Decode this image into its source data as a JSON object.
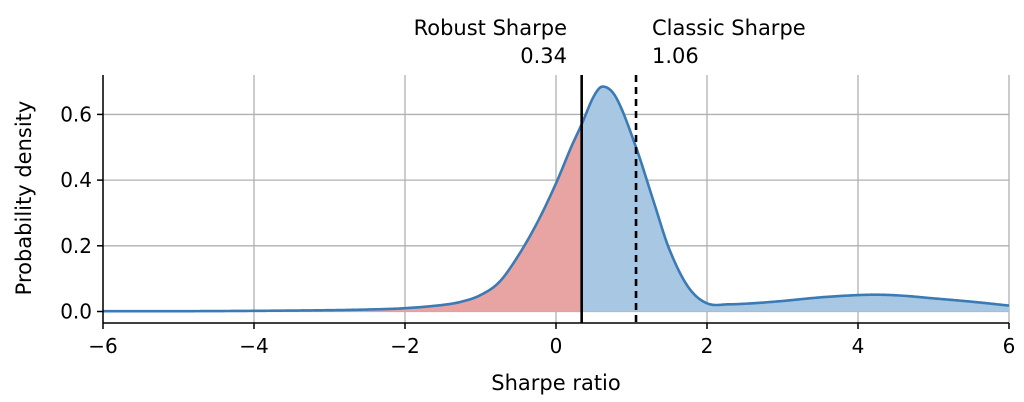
{
  "chart_data": {
    "type": "area",
    "title": "",
    "xlabel": "Sharpe ratio",
    "ylabel": "Probability density",
    "xlim": [
      -6,
      6
    ],
    "ylim": [
      -0.035,
      0.72
    ],
    "xticks": [
      -6,
      -4,
      -2,
      0,
      2,
      4,
      6
    ],
    "xtick_labels": [
      "−6",
      "−4",
      "−2",
      "0",
      "2",
      "4",
      "6"
    ],
    "yticks": [
      0.0,
      0.2,
      0.4,
      0.6
    ],
    "ytick_labels": [
      "0.0",
      "0.2",
      "0.4",
      "0.6"
    ],
    "grid": true,
    "series": [
      {
        "x": [
          -6,
          -5,
          -4,
          -3,
          -2.5,
          -2,
          -1.5,
          -1.25,
          -1,
          -0.75,
          -0.5,
          -0.25,
          0,
          0.2,
          0.34,
          0.5,
          0.62,
          0.8,
          1.06,
          1.3,
          1.5,
          1.75,
          2,
          2.3,
          2.6,
          3,
          3.5,
          4,
          4.3,
          4.6,
          5,
          5.5,
          6
        ],
        "y": [
          0.001,
          0.001,
          0.002,
          0.004,
          0.006,
          0.01,
          0.02,
          0.03,
          0.05,
          0.09,
          0.17,
          0.27,
          0.39,
          0.5,
          0.57,
          0.655,
          0.685,
          0.65,
          0.5,
          0.33,
          0.19,
          0.075,
          0.025,
          0.022,
          0.025,
          0.032,
          0.043,
          0.05,
          0.051,
          0.048,
          0.04,
          0.03,
          0.018
        ],
        "color": "#3a7ab5",
        "fill_left": "#e8a3a3",
        "fill_right": "#a7c7e2"
      }
    ],
    "annotations": [
      {
        "x": 0.34,
        "label": "Robust Sharpe",
        "value": "0.34",
        "style": "solid"
      },
      {
        "x": 1.06,
        "label": "Classic Sharpe",
        "value": "1.06",
        "style": "dashed"
      }
    ]
  }
}
